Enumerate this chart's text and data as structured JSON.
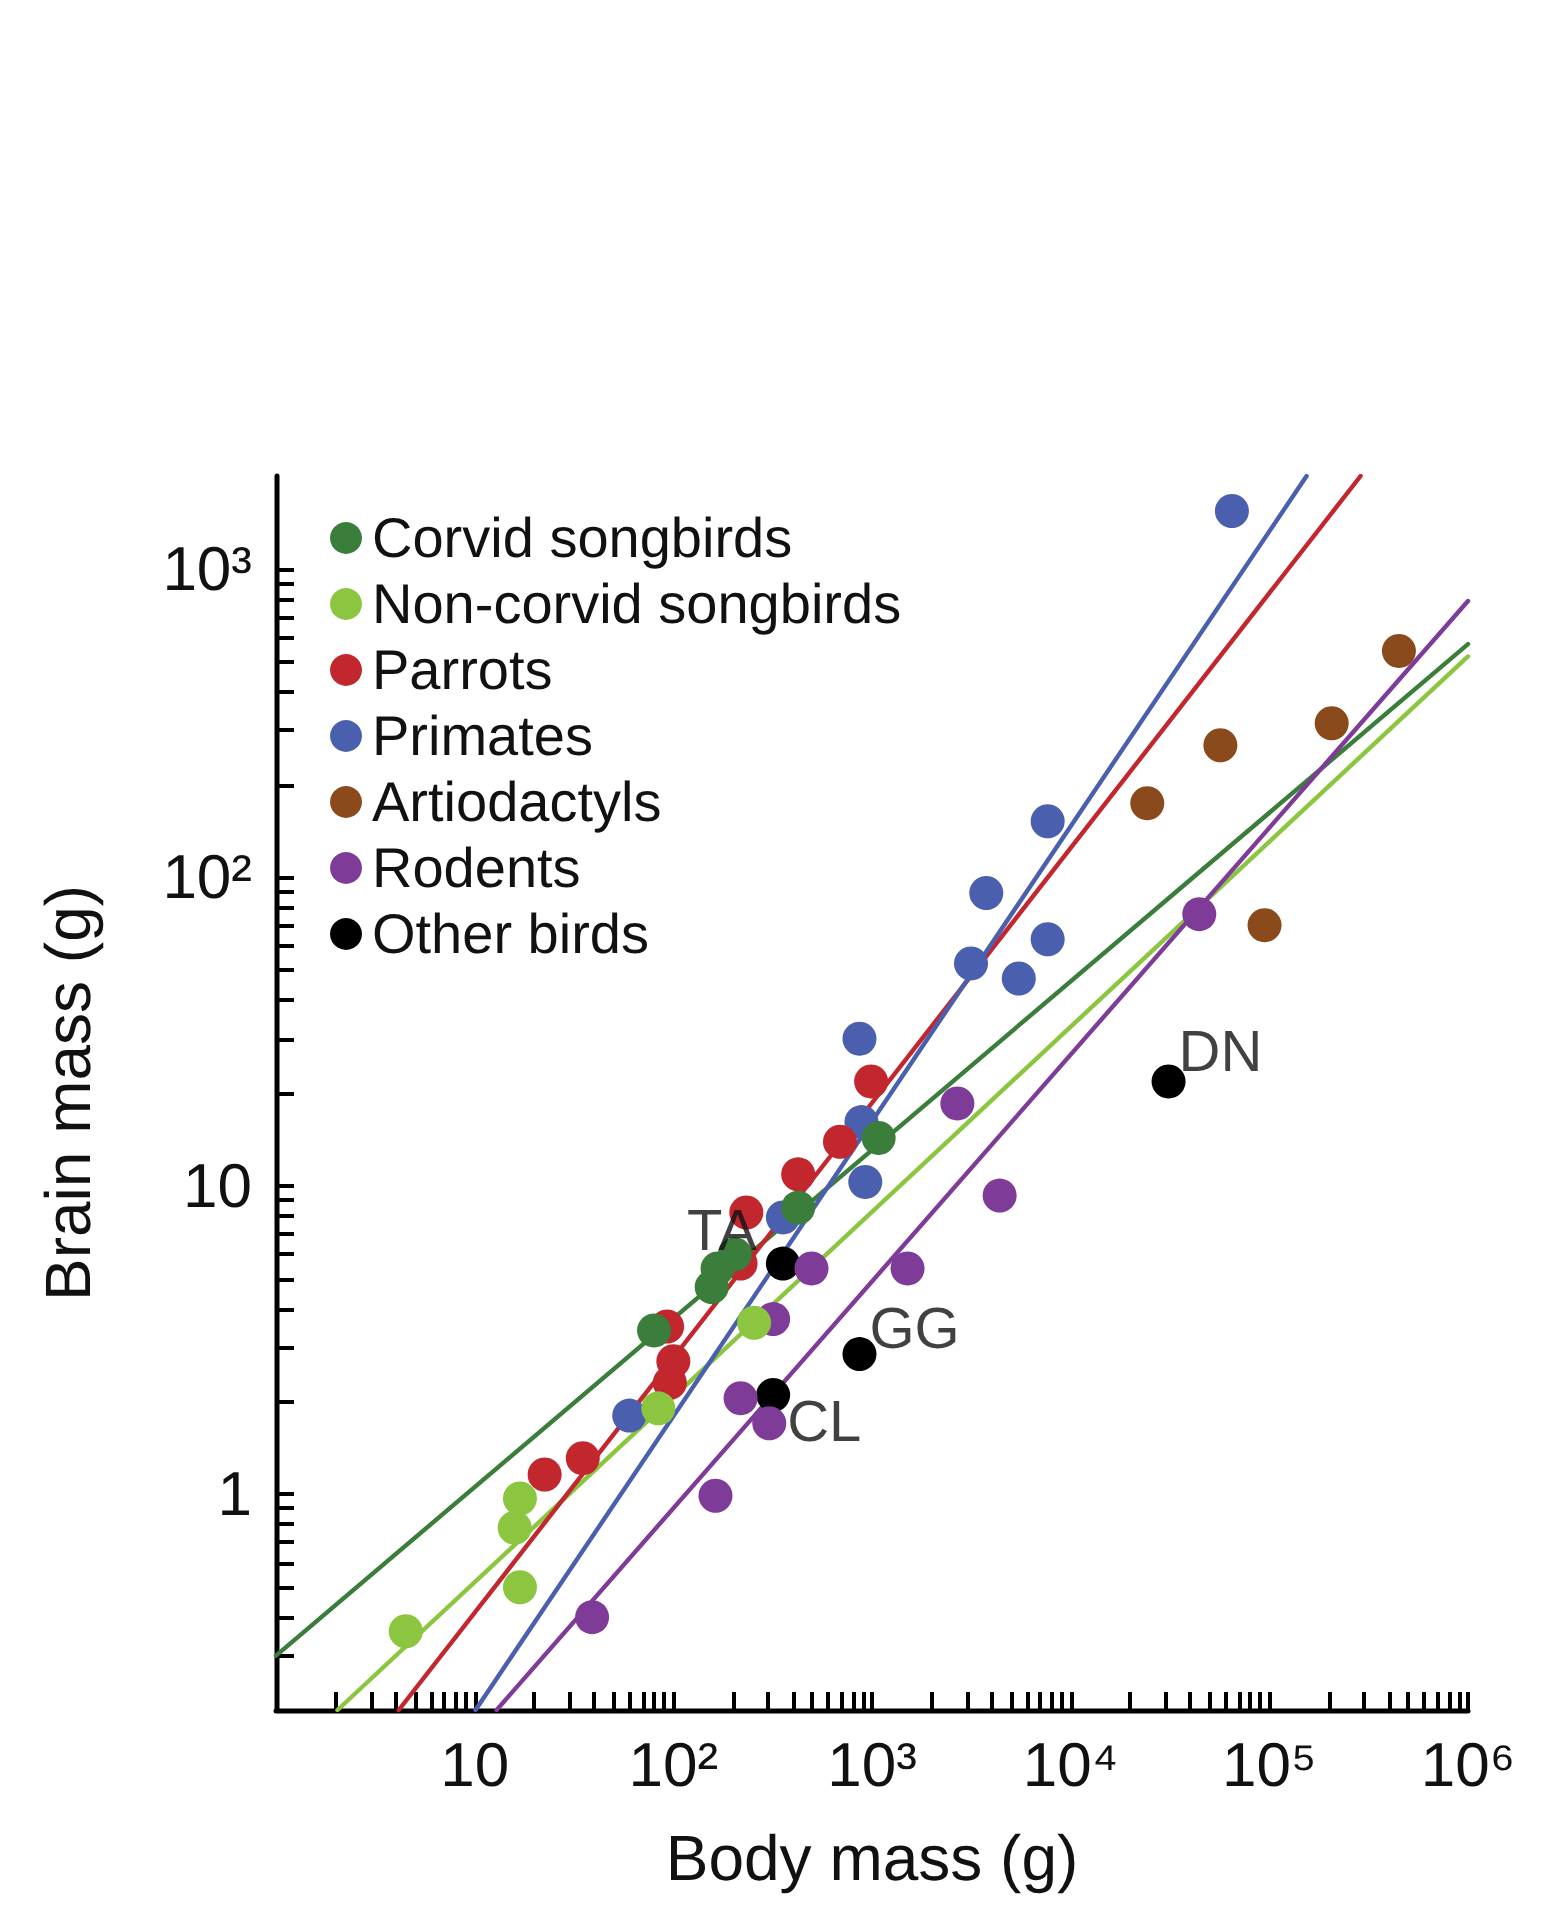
{
  "chart_data": {
    "type": "scatter",
    "xlabel": "Body mass (g)",
    "ylabel": "Brain mass (g)",
    "log": "xy",
    "grid": false,
    "legend": "top left",
    "marker": "circle",
    "xlim": [
      1,
      1000000
    ],
    "ylim": [
      0.2,
      2000
    ],
    "xticks": [
      {
        "value": 2,
        "label": null
      },
      {
        "value": 3,
        "label": null
      },
      {
        "value": 4,
        "label": null
      },
      {
        "value": 5,
        "label": null
      },
      {
        "value": 6,
        "label": null
      },
      {
        "value": 7,
        "label": null
      },
      {
        "value": 8,
        "label": null
      },
      {
        "value": 9,
        "label": null
      },
      {
        "value": 10,
        "label": "10"
      },
      {
        "value": 20,
        "label": null
      },
      {
        "value": 30,
        "label": null
      },
      {
        "value": 40,
        "label": null
      },
      {
        "value": 50,
        "label": null
      },
      {
        "value": 60,
        "label": null
      },
      {
        "value": 70,
        "label": null
      },
      {
        "value": 80,
        "label": null
      },
      {
        "value": 90,
        "label": null
      },
      {
        "value": 100,
        "label": "10²"
      },
      {
        "value": 200,
        "label": null
      },
      {
        "value": 300,
        "label": null
      },
      {
        "value": 400,
        "label": null
      },
      {
        "value": 500,
        "label": null
      },
      {
        "value": 600,
        "label": null
      },
      {
        "value": 700,
        "label": null
      },
      {
        "value": 800,
        "label": null
      },
      {
        "value": 900,
        "label": null
      },
      {
        "value": 1000,
        "label": "10³"
      },
      {
        "value": 2000,
        "label": null
      },
      {
        "value": 3000,
        "label": null
      },
      {
        "value": 4000,
        "label": null
      },
      {
        "value": 5000,
        "label": null
      },
      {
        "value": 6000,
        "label": null
      },
      {
        "value": 7000,
        "label": null
      },
      {
        "value": 8000,
        "label": null
      },
      {
        "value": 9000,
        "label": null
      },
      {
        "value": 10000,
        "label": "10⁴"
      },
      {
        "value": 20000,
        "label": null
      },
      {
        "value": 30000,
        "label": null
      },
      {
        "value": 40000,
        "label": null
      },
      {
        "value": 50000,
        "label": null
      },
      {
        "value": 60000,
        "label": null
      },
      {
        "value": 70000,
        "label": null
      },
      {
        "value": 80000,
        "label": null
      },
      {
        "value": 90000,
        "label": null
      },
      {
        "value": 100000,
        "label": "10⁵"
      },
      {
        "value": 200000,
        "label": null
      },
      {
        "value": 300000,
        "label": null
      },
      {
        "value": 400000,
        "label": null
      },
      {
        "value": 500000,
        "label": null
      },
      {
        "value": 600000,
        "label": null
      },
      {
        "value": 700000,
        "label": null
      },
      {
        "value": 800000,
        "label": null
      },
      {
        "value": 900000,
        "label": null
      },
      {
        "value": 1000000,
        "label": "10⁶"
      }
    ],
    "yticks": [
      {
        "value": 0.3,
        "label": null
      },
      {
        "value": 0.4,
        "label": null
      },
      {
        "value": 0.5,
        "label": null
      },
      {
        "value": 0.6,
        "label": null
      },
      {
        "value": 0.7,
        "label": null
      },
      {
        "value": 0.8,
        "label": null
      },
      {
        "value": 0.9,
        "label": null
      },
      {
        "value": 1,
        "label": "1"
      },
      {
        "value": 2,
        "label": null
      },
      {
        "value": 3,
        "label": null
      },
      {
        "value": 4,
        "label": null
      },
      {
        "value": 5,
        "label": null
      },
      {
        "value": 6,
        "label": null
      },
      {
        "value": 7,
        "label": null
      },
      {
        "value": 8,
        "label": null
      },
      {
        "value": 9,
        "label": null
      },
      {
        "value": 10,
        "label": "10"
      },
      {
        "value": 20,
        "label": null
      },
      {
        "value": 30,
        "label": null
      },
      {
        "value": 40,
        "label": null
      },
      {
        "value": 50,
        "label": null
      },
      {
        "value": 60,
        "label": null
      },
      {
        "value": 70,
        "label": null
      },
      {
        "value": 80,
        "label": null
      },
      {
        "value": 90,
        "label": null
      },
      {
        "value": 100,
        "label": "10²"
      },
      {
        "value": 200,
        "label": null
      },
      {
        "value": 300,
        "label": null
      },
      {
        "value": 400,
        "label": null
      },
      {
        "value": 500,
        "label": null
      },
      {
        "value": 600,
        "label": null
      },
      {
        "value": 700,
        "label": null
      },
      {
        "value": 800,
        "label": null
      },
      {
        "value": 900,
        "label": null
      },
      {
        "value": 1000,
        "label": "10³"
      }
    ],
    "series": [
      {
        "name": "Corvid songbirds",
        "color": "#3b7d3b",
        "x": [
          80,
          156,
          167,
          204,
          425,
          1080
        ],
        "values": [
          3.4,
          4.7,
          5.4,
          6.0,
          8.5,
          14.3
        ]
      },
      {
        "name": "Non-corvid songbirds",
        "color": "#8cc540",
        "x": [
          4.5,
          16.9,
          15.9,
          16.9,
          84,
          255
        ],
        "values": [
          0.36,
          0.97,
          0.78,
          0.5,
          1.9,
          3.6
        ]
      },
      {
        "name": "Parrots",
        "color": "#c1272d",
        "x": [
          22.5,
          35,
          96,
          100,
          93,
          218,
          233,
          425,
          690,
          990
        ],
        "values": [
          1.16,
          1.31,
          2.3,
          2.7,
          3.5,
          5.6,
          8.2,
          10.9,
          13.9,
          21.8
        ]
      },
      {
        "name": "Primates",
        "color": "#4a5fae",
        "x": [
          60,
          356,
          885,
          925,
          865,
          3150,
          5480,
          7660,
          3760,
          7660,
          64800
        ],
        "values": [
          1.8,
          7.9,
          16.1,
          10.3,
          30,
          52.6,
          47,
          63,
          89,
          152,
          1540
        ]
      },
      {
        "name": "Artiodactyls",
        "color": "#8b4a1c",
        "x": [
          24300,
          56700,
          206000,
          449000,
          94600
        ],
        "values": [
          174,
          268,
          316,
          542,
          70
        ]
      },
      {
        "name": "Rodents",
        "color": "#7e3c98",
        "x": [
          39,
          163,
          218,
          304,
          318,
          496,
          1510,
          2690,
          4390,
          44400
        ],
        "values": [
          0.4,
          0.99,
          2.05,
          1.7,
          3.7,
          5.4,
          5.4,
          18.5,
          9.3,
          76
        ]
      },
      {
        "name": "Other birds",
        "color": "#000000",
        "x": [
          356,
          318,
          865,
          31100
        ],
        "values": [
          5.6,
          2.1,
          2.85,
          21.8
        ]
      },
      {
        "type": "line",
        "marker": "none",
        "color": "#3b7d3b",
        "x": [
          1,
          1000000
        ],
        "values": [
          0.3,
          570
        ]
      },
      {
        "type": "line",
        "marker": "none",
        "color": "#8cc540",
        "x": [
          2.04,
          1000000
        ],
        "values": [
          0.2,
          520
        ]
      },
      {
        "type": "line",
        "marker": "none",
        "color": "#c1272d",
        "x": [
          4.15,
          288000
        ],
        "values": [
          0.2,
          2000
        ]
      },
      {
        "type": "line",
        "marker": "none",
        "color": "#4a5fae",
        "x": [
          10.1,
          154000
        ],
        "values": [
          0.2,
          2000
        ]
      },
      {
        "type": "line",
        "marker": "none",
        "color": "#7e3c98",
        "x": [
          12.9,
          1000000
        ],
        "values": [
          0.2,
          787
        ]
      }
    ],
    "annotations": [
      {
        "text": "TA",
        "x": 356,
        "y": 5.6
      },
      {
        "text": "CL",
        "x": 318,
        "y": 2.1
      },
      {
        "text": "GG",
        "x": 865,
        "y": 2.85
      },
      {
        "text": "DN",
        "x": 31100,
        "y": 21.8
      }
    ]
  }
}
